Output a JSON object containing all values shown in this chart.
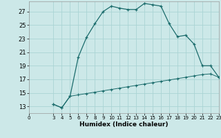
{
  "title": "",
  "xlabel": "Humidex (Indice chaleur)",
  "background_color": "#cce8e8",
  "line_color": "#1a6b6b",
  "grid_color": "#aad4d4",
  "xlim": [
    0,
    23
  ],
  "ylim": [
    12,
    28.5
  ],
  "xticks": [
    0,
    3,
    4,
    5,
    6,
    7,
    8,
    9,
    10,
    11,
    12,
    13,
    14,
    15,
    16,
    17,
    18,
    19,
    20,
    21,
    22,
    23
  ],
  "yticks": [
    13,
    15,
    17,
    19,
    21,
    23,
    25,
    27
  ],
  "line1_x": [
    3,
    4,
    5,
    6,
    7,
    8,
    9,
    10,
    11,
    12,
    13,
    14,
    15,
    16,
    17,
    18,
    19,
    20,
    21,
    22,
    23
  ],
  "line1_y": [
    13.3,
    12.8,
    14.5,
    20.3,
    23.2,
    25.2,
    27.0,
    27.8,
    27.5,
    27.3,
    27.3,
    28.2,
    28.0,
    27.8,
    25.2,
    23.3,
    23.5,
    22.2,
    19.0,
    19.0,
    17.3
  ],
  "line2_x": [
    3,
    4,
    5,
    6,
    7,
    8,
    9,
    10,
    11,
    12,
    13,
    14,
    15,
    16,
    17,
    18,
    19,
    20,
    21,
    22,
    23
  ],
  "line2_y": [
    13.3,
    12.8,
    14.5,
    14.7,
    14.9,
    15.1,
    15.3,
    15.5,
    15.7,
    15.9,
    16.1,
    16.3,
    16.5,
    16.7,
    16.9,
    17.1,
    17.3,
    17.5,
    17.7,
    17.8,
    17.3
  ]
}
